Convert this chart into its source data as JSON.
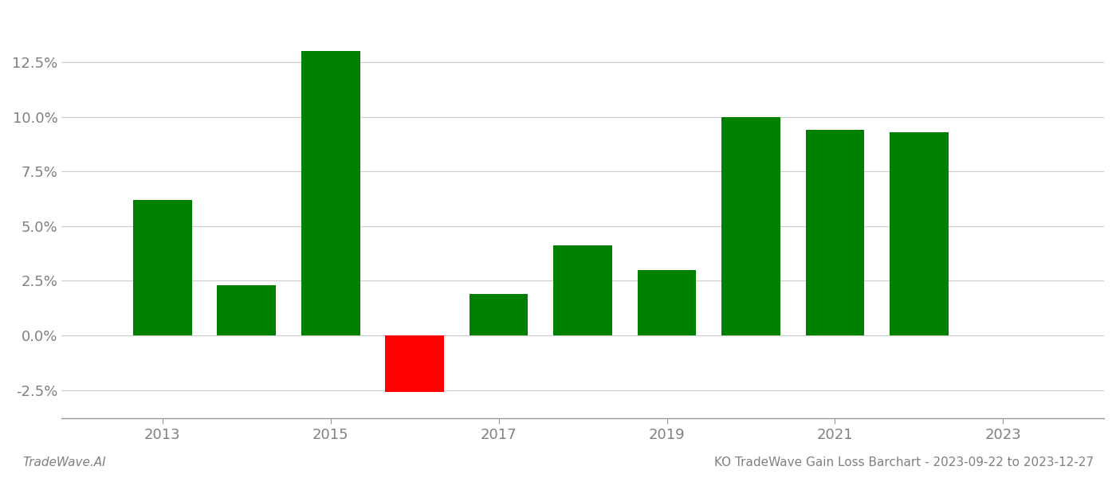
{
  "years": [
    2013,
    2014,
    2015,
    2016,
    2017,
    2018,
    2019,
    2020,
    2021,
    2022
  ],
  "values": [
    0.062,
    0.023,
    0.13,
    -0.026,
    0.019,
    0.041,
    0.03,
    0.1,
    0.094,
    0.093
  ],
  "colors": [
    "#008000",
    "#008000",
    "#008000",
    "#ff0000",
    "#008000",
    "#008000",
    "#008000",
    "#008000",
    "#008000",
    "#008000"
  ],
  "ylim": [
    -0.038,
    0.148
  ],
  "yticks": [
    -0.025,
    0.0,
    0.025,
    0.05,
    0.075,
    0.1,
    0.125
  ],
  "xlim": [
    2011.8,
    2024.2
  ],
  "xtick_positions": [
    2013,
    2015,
    2017,
    2019,
    2021,
    2023
  ],
  "footer_left": "TradeWave.AI",
  "footer_right": "KO TradeWave Gain Loss Barchart - 2023-09-22 to 2023-12-27",
  "grid_color": "#cccccc",
  "bar_width": 0.7,
  "background_color": "#ffffff",
  "spine_color": "#999999",
  "tick_label_color": "#808080",
  "footer_fontsize": 11,
  "tick_fontsize": 13
}
